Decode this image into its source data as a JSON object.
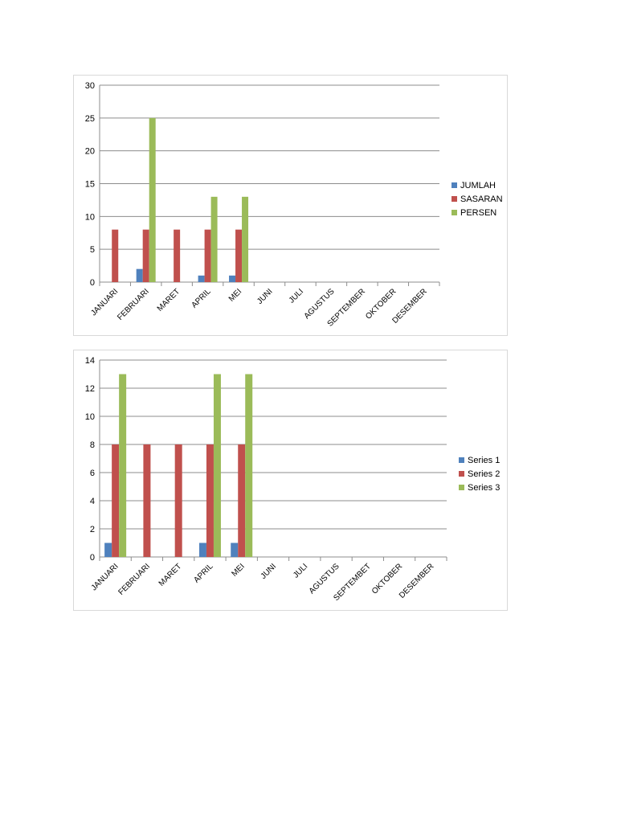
{
  "chart_data": [
    {
      "type": "bar",
      "title": "",
      "xlabel": "",
      "ylabel": "",
      "ylim": [
        0,
        30
      ],
      "yticks": [
        0,
        5,
        10,
        15,
        20,
        25,
        30
      ],
      "grid": true,
      "legend_position": "right",
      "categories": [
        "JANUARI",
        "FEBRUARI",
        "MARET",
        "APRIL",
        "MEI",
        "JUNI",
        "JULI",
        "AGUSTUS",
        "SEPTEMBER",
        "OKTOBER",
        "DESEMBER"
      ],
      "series": [
        {
          "name": "JUMLAH",
          "color": "#4f81bd",
          "values": [
            0,
            2,
            0,
            1,
            1,
            0,
            0,
            0,
            0,
            0,
            0
          ]
        },
        {
          "name": "SASARAN",
          "color": "#c0504d",
          "values": [
            8,
            8,
            8,
            8,
            8,
            0,
            0,
            0,
            0,
            0,
            0
          ]
        },
        {
          "name": "PERSEN",
          "color": "#9bbb59",
          "values": [
            0,
            25,
            0,
            13,
            13,
            0,
            0,
            0,
            0,
            0,
            0
          ]
        }
      ]
    },
    {
      "type": "bar",
      "title": "",
      "xlabel": "",
      "ylabel": "",
      "ylim": [
        0,
        14
      ],
      "yticks": [
        0,
        2,
        4,
        6,
        8,
        10,
        12,
        14
      ],
      "grid": true,
      "legend_position": "right",
      "categories": [
        "JANUARI",
        "FEBRUARI",
        "MARET",
        "APRIL",
        "MEI",
        "JUNI",
        "JULI",
        "AGUSTUS",
        "SEPTEMBET",
        "OKTOBER",
        "DESEMBER"
      ],
      "series": [
        {
          "name": "Series 1",
          "color": "#4f81bd",
          "values": [
            1,
            0,
            0,
            1,
            1,
            0,
            0,
            0,
            0,
            0,
            0
          ]
        },
        {
          "name": "Series 2",
          "color": "#c0504d",
          "values": [
            8,
            8,
            8,
            8,
            8,
            0,
            0,
            0,
            0,
            0,
            0
          ]
        },
        {
          "name": "Series 3",
          "color": "#9bbb59",
          "values": [
            13,
            0,
            0,
            13,
            13,
            0,
            0,
            0,
            0,
            0,
            0
          ]
        }
      ]
    }
  ]
}
